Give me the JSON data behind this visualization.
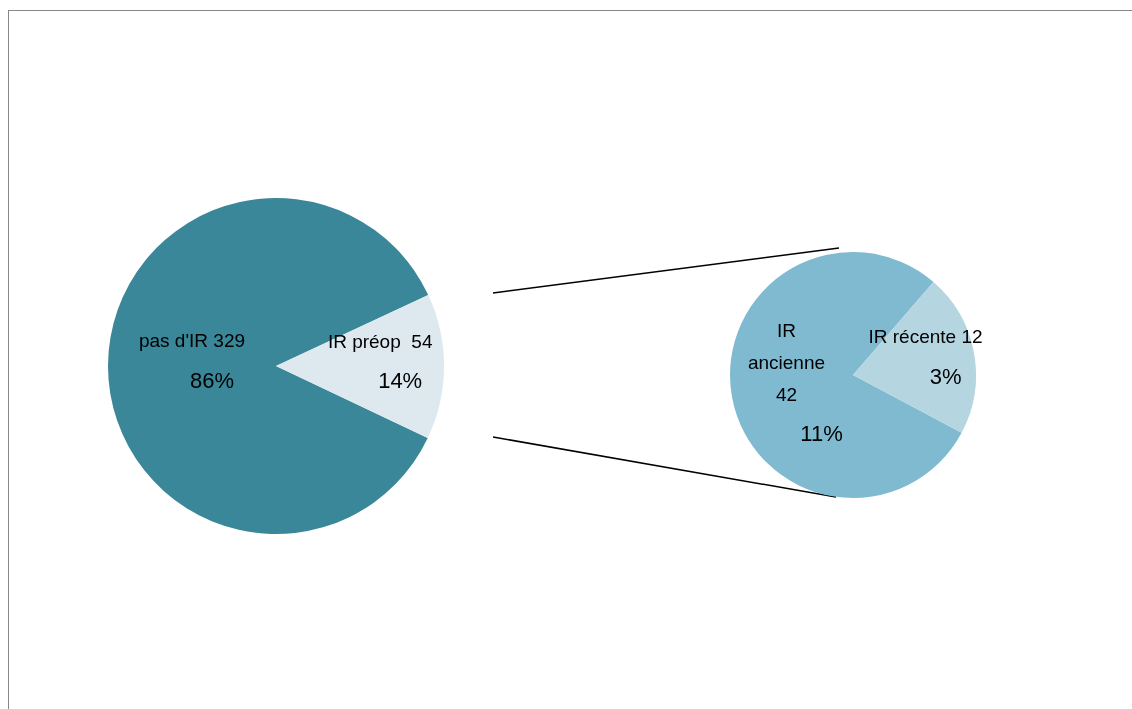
{
  "chart_data": [
    {
      "type": "pie",
      "categories": [
        "pas d'IR 329",
        "IR préop  54"
      ],
      "values": [
        86,
        14
      ],
      "colors": [
        "#3a8799",
        "#dde9ef"
      ],
      "value_labels": [
        "86%",
        "14%"
      ]
    },
    {
      "type": "pie",
      "categories": [
        "IR ancienne 42",
        "IR récente 12"
      ],
      "values": [
        11,
        3
      ],
      "colors": [
        "#7fbad0",
        "#b5d5e0"
      ],
      "value_labels": [
        "11%",
        "3%"
      ]
    }
  ]
}
